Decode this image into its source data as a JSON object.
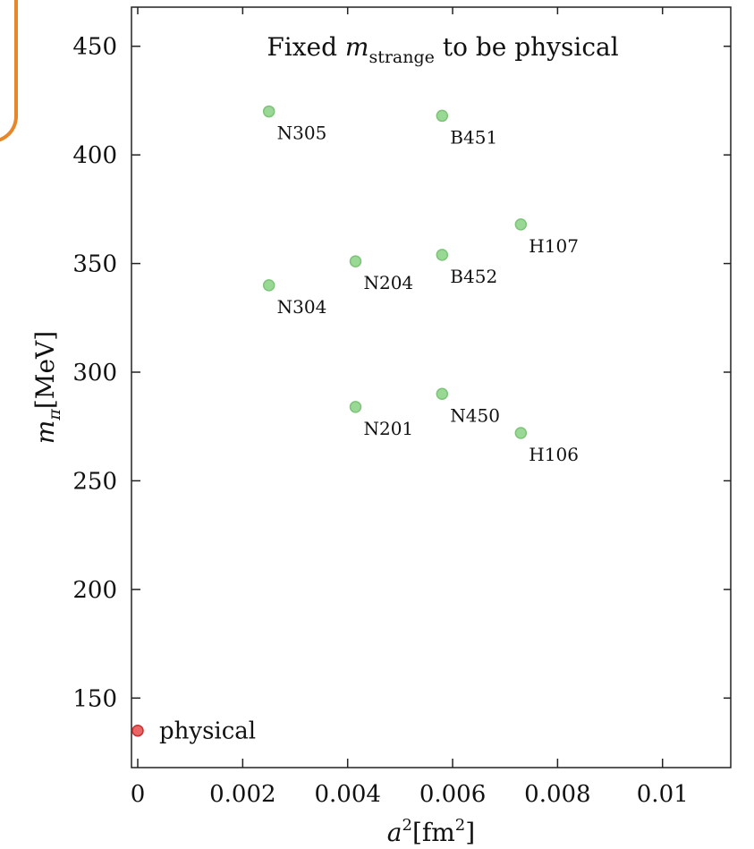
{
  "chart_data": {
    "type": "scatter",
    "title_pre": "Fixed ",
    "title_math": "m",
    "title_sub": "strange",
    "title_post": " to be physical",
    "xlabel_base": "a",
    "xlabel_sup": "2",
    "xlabel_unit_open": "[fm",
    "xlabel_unit_sup": "2",
    "xlabel_unit_close": "]",
    "ylabel_base": "m",
    "ylabel_sub": "π",
    "ylabel_unit": "[MeV]",
    "xlim": [
      0,
      0.0113
    ],
    "ylim": [
      118,
      468
    ],
    "xticks": [
      {
        "value": 0,
        "label": "0"
      },
      {
        "value": 0.002,
        "label": "0.002"
      },
      {
        "value": 0.004,
        "label": "0.004"
      },
      {
        "value": 0.006,
        "label": "0.006"
      },
      {
        "value": 0.008,
        "label": "0.008"
      },
      {
        "value": 0.01,
        "label": "0.01"
      }
    ],
    "yticks": [
      {
        "value": 150,
        "label": "150"
      },
      {
        "value": 200,
        "label": "200"
      },
      {
        "value": 250,
        "label": "250"
      },
      {
        "value": 300,
        "label": "300"
      },
      {
        "value": 350,
        "label": "350"
      },
      {
        "value": 400,
        "label": "400"
      },
      {
        "value": 450,
        "label": "450"
      }
    ],
    "points": [
      {
        "label": "N305",
        "x": 0.0025,
        "y": 420,
        "color": "#8fd48a"
      },
      {
        "label": "B451",
        "x": 0.0058,
        "y": 418,
        "color": "#8fd48a"
      },
      {
        "label": "H107",
        "x": 0.0073,
        "y": 368,
        "color": "#8fd48a"
      },
      {
        "label": "N204",
        "x": 0.00415,
        "y": 351,
        "color": "#8fd48a"
      },
      {
        "label": "B452",
        "x": 0.0058,
        "y": 354,
        "color": "#8fd48a"
      },
      {
        "label": "N304",
        "x": 0.0025,
        "y": 340,
        "color": "#8fd48a"
      },
      {
        "label": "N201",
        "x": 0.00415,
        "y": 284,
        "color": "#8fd48a"
      },
      {
        "label": "N450",
        "x": 0.0058,
        "y": 290,
        "color": "#8fd48a"
      },
      {
        "label": "H106",
        "x": 0.0073,
        "y": 272,
        "color": "#8fd48a"
      },
      {
        "label": "physical",
        "x": 0,
        "y": 135,
        "color": "#e85555"
      }
    ]
  }
}
